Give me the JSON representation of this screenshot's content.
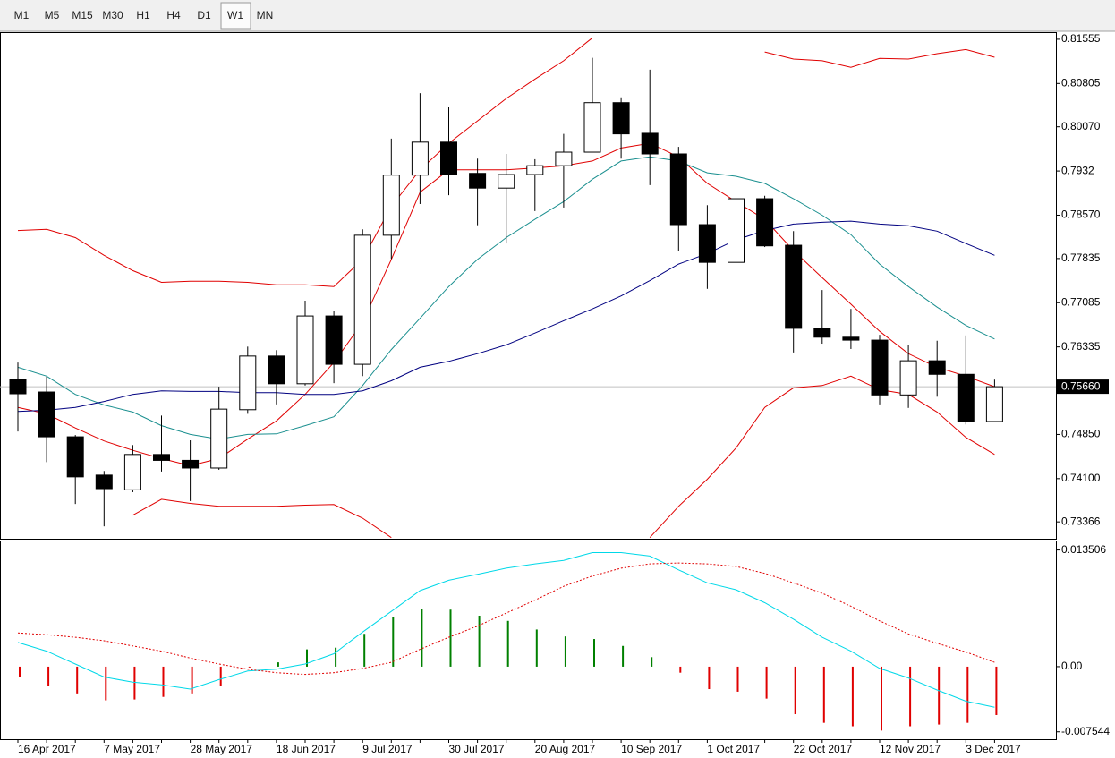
{
  "toolbar": {
    "timeframes": [
      "M1",
      "M5",
      "M15",
      "M30",
      "H1",
      "H4",
      "D1",
      "W1",
      "MN"
    ],
    "active_index": 7
  },
  "chart_data": [
    {
      "type": "candlestick",
      "categories": [
        "16 Apr 2017",
        null,
        null,
        "7 May 2017",
        null,
        null,
        "28 May 2017",
        null,
        null,
        "18 Jun 2017",
        null,
        null,
        "9 Jul 2017",
        null,
        null,
        "30 Jul 2017",
        null,
        null,
        "20 Aug 2017",
        null,
        null,
        "10 Sep 2017",
        null,
        null,
        "1 Oct 2017",
        null,
        null,
        "22 Oct 2017",
        null,
        null,
        "12 Nov 2017",
        null,
        null,
        "3 Dec 2017",
        null
      ],
      "open": [
        0.7578,
        0.7557,
        0.7481,
        0.7416,
        0.7391,
        0.7451,
        0.7441,
        0.7428,
        0.7527,
        0.7618,
        0.7571,
        0.7686,
        0.7604,
        0.7823,
        0.7925,
        0.7981,
        0.7928,
        0.7903,
        0.7926,
        0.7941,
        0.7964,
        0.8048,
        0.7996,
        0.7961,
        0.7841,
        0.7777,
        0.7885,
        0.7806,
        0.7665,
        0.765,
        0.7645,
        0.7552,
        0.761,
        0.7587,
        0.7507
      ],
      "high": [
        0.7607,
        0.7583,
        0.7484,
        0.7423,
        0.7467,
        0.7517,
        0.7475,
        0.7566,
        0.7634,
        0.7628,
        0.7712,
        0.7695,
        0.7833,
        0.7987,
        0.8064,
        0.804,
        0.7953,
        0.7961,
        0.7952,
        0.7995,
        0.8124,
        0.8057,
        0.8104,
        0.7973,
        0.7874,
        0.7894,
        0.789,
        0.783,
        0.773,
        0.7698,
        0.7654,
        0.7637,
        0.7644,
        0.7653,
        0.7578
      ],
      "low": [
        0.749,
        0.7438,
        0.7367,
        0.7329,
        0.7387,
        0.7422,
        0.7372,
        0.7425,
        0.752,
        0.7536,
        0.7568,
        0.7572,
        0.7584,
        0.7783,
        0.7876,
        0.7891,
        0.784,
        0.7809,
        0.7864,
        0.787,
        0.7964,
        0.7953,
        0.7908,
        0.7797,
        0.7732,
        0.7747,
        0.7803,
        0.7624,
        0.7639,
        0.763,
        0.7536,
        0.753,
        0.7549,
        0.7502,
        0.7507
      ],
      "close": [
        0.7554,
        0.7481,
        0.7413,
        0.7393,
        0.7451,
        0.7441,
        0.7428,
        0.7528,
        0.7618,
        0.7571,
        0.7686,
        0.7604,
        0.7823,
        0.7925,
        0.7981,
        0.7926,
        0.7903,
        0.7926,
        0.7941,
        0.7964,
        0.8048,
        0.7995,
        0.7961,
        0.7841,
        0.7777,
        0.7885,
        0.7805,
        0.7665,
        0.765,
        0.7645,
        0.7552,
        0.761,
        0.7587,
        0.7507,
        0.7566
      ],
      "up_color": "#ffffff",
      "down_color": "#000000",
      "series": [
        {
          "color": "#e00000",
          "values": [
            0.7531,
            0.752,
            0.7496,
            0.7474,
            0.7458,
            0.7444,
            0.7432,
            0.7444,
            0.7477,
            0.7508,
            0.7553,
            0.7607,
            0.7675,
            0.7782,
            0.7896,
            0.7934,
            0.7934,
            0.7934,
            0.7937,
            0.7941,
            0.7949,
            0.7971,
            0.7979,
            0.7956,
            0.7911,
            0.788,
            0.785,
            0.7797,
            0.7751,
            0.7706,
            0.766,
            0.7622,
            0.7599,
            0.7584,
            0.7566
          ]
        },
        {
          "color": "#1a8f8f",
          "values": [
            0.7599,
            0.7584,
            0.7553,
            0.7535,
            0.7523,
            0.75,
            0.7485,
            0.7477,
            0.7485,
            0.7486,
            0.75,
            0.7515,
            0.7568,
            0.7629,
            0.7682,
            0.7736,
            0.7782,
            0.7819,
            0.785,
            0.788,
            0.7918,
            0.7949,
            0.7956,
            0.7949,
            0.7929,
            0.7923,
            0.7911,
            0.7885,
            0.7857,
            0.7824,
            0.7774,
            0.7736,
            0.7701,
            0.767,
            0.7647
          ]
        },
        {
          "color": "#000080",
          "values": [
            0.7524,
            0.7526,
            0.7531,
            0.7541,
            0.7553,
            0.7559,
            0.7558,
            0.7558,
            0.7556,
            0.7556,
            0.7553,
            0.7553,
            0.7559,
            0.7576,
            0.7599,
            0.7609,
            0.7622,
            0.7637,
            0.7657,
            0.7678,
            0.7698,
            0.772,
            0.7746,
            0.7774,
            0.7792,
            0.7815,
            0.7831,
            0.7842,
            0.7845,
            0.7847,
            0.7842,
            0.7839,
            0.783,
            0.7809,
            0.7789
          ]
        },
        {
          "color": "#e00000",
          "values": [
            0.7831,
            0.7833,
            0.7819,
            0.7789,
            0.7763,
            0.7743,
            0.7745,
            0.7745,
            0.7743,
            0.7739,
            0.7739,
            0.7736,
            0.7782,
            0.7872,
            0.7934,
            0.7979,
            0.8017,
            0.8055,
            0.8088,
            0.8119,
            0.8158,
            null,
            null,
            null,
            null,
            null,
            0.8134,
            0.8122,
            0.8119,
            0.8108,
            0.8123,
            0.8122,
            0.8131,
            0.8138,
            0.8125
          ]
        },
        {
          "color": "#e00000",
          "values": [
            null,
            null,
            null,
            null,
            0.7348,
            0.7375,
            0.7368,
            0.7363,
            0.7363,
            0.7363,
            0.7365,
            0.7366,
            0.7343,
            0.731,
            null,
            null,
            null,
            null,
            null,
            null,
            null,
            null,
            0.731,
            0.7363,
            0.7409,
            0.7462,
            0.7531,
            0.7564,
            0.7568,
            0.7584,
            0.7561,
            0.7553,
            0.7523,
            0.748,
            0.7451
          ]
        }
      ],
      "current_price": {
        "value": 0.7566,
        "label": "0.75660"
      },
      "ylim": [
        0.7308,
        0.8166
      ],
      "yticks": [
        0.81555,
        0.80805,
        {
          "value": 0.8007,
          "label": "0.80070"
        },
        0.7932,
        {
          "value": 0.7857,
          "label": "0.78570"
        },
        0.77835,
        0.77085,
        0.76335,
        {
          "value": 0.7485,
          "label": "0.74850"
        },
        {
          "value": 0.741,
          "label": "0.74100"
        },
        0.73366
      ]
    },
    {
      "type": "bar",
      "values": [
        -0.0012,
        -0.0022,
        -0.0031,
        -0.0039,
        -0.0038,
        -0.0035,
        -0.0031,
        -0.0022,
        -0.0001,
        0.0005,
        0.002,
        0.0022,
        0.0038,
        0.0057,
        0.0067,
        0.0066,
        0.0059,
        0.0053,
        0.0043,
        0.0035,
        0.0032,
        0.0024,
        0.0011,
        -0.0007,
        -0.0026,
        -0.0029,
        -0.0037,
        -0.0055,
        -0.0065,
        -0.0069,
        -0.0074,
        -0.0069,
        -0.0067,
        -0.0065,
        -0.0056
      ],
      "positive_color": "#008000",
      "negative_color": "#e00000",
      "series": [
        {
          "color": "#00d8e8",
          "values": [
            0.0028,
            0.0018,
            0.0003,
            -0.0012,
            -0.0018,
            -0.0021,
            -0.0026,
            -0.0015,
            -0.0005,
            -0.0003,
            0.0003,
            0.0015,
            0.004,
            0.0064,
            0.0088,
            0.01,
            0.0107,
            0.0114,
            0.0119,
            0.0123,
            0.0132,
            0.0132,
            0.0128,
            0.0112,
            0.0097,
            0.0089,
            0.0074,
            0.0055,
            0.0034,
            0.0018,
            -0.0002,
            -0.0013,
            -0.0027,
            -0.004,
            -0.0047
          ]
        },
        {
          "color": "#e00000",
          "dashed": true,
          "values": [
            0.0039,
            0.0037,
            0.0034,
            0.003,
            0.0024,
            0.0018,
            0.001,
            0.0003,
            -0.0003,
            -0.0007,
            -0.0009,
            -0.0007,
            -0.0002,
            0.0005,
            0.002,
            0.0034,
            0.0047,
            0.0062,
            0.0077,
            0.0093,
            0.0105,
            0.0114,
            0.0119,
            0.012,
            0.0119,
            0.0116,
            0.0108,
            0.0097,
            0.0085,
            0.007,
            0.0053,
            0.0038,
            0.0027,
            0.0017,
            0.0005
          ]
        }
      ],
      "ylim": [
        -0.0084,
        0.0145
      ],
      "yticks": [
        0.013506,
        {
          "value": 0,
          "label": "0.00"
        },
        -0.007544
      ]
    }
  ]
}
